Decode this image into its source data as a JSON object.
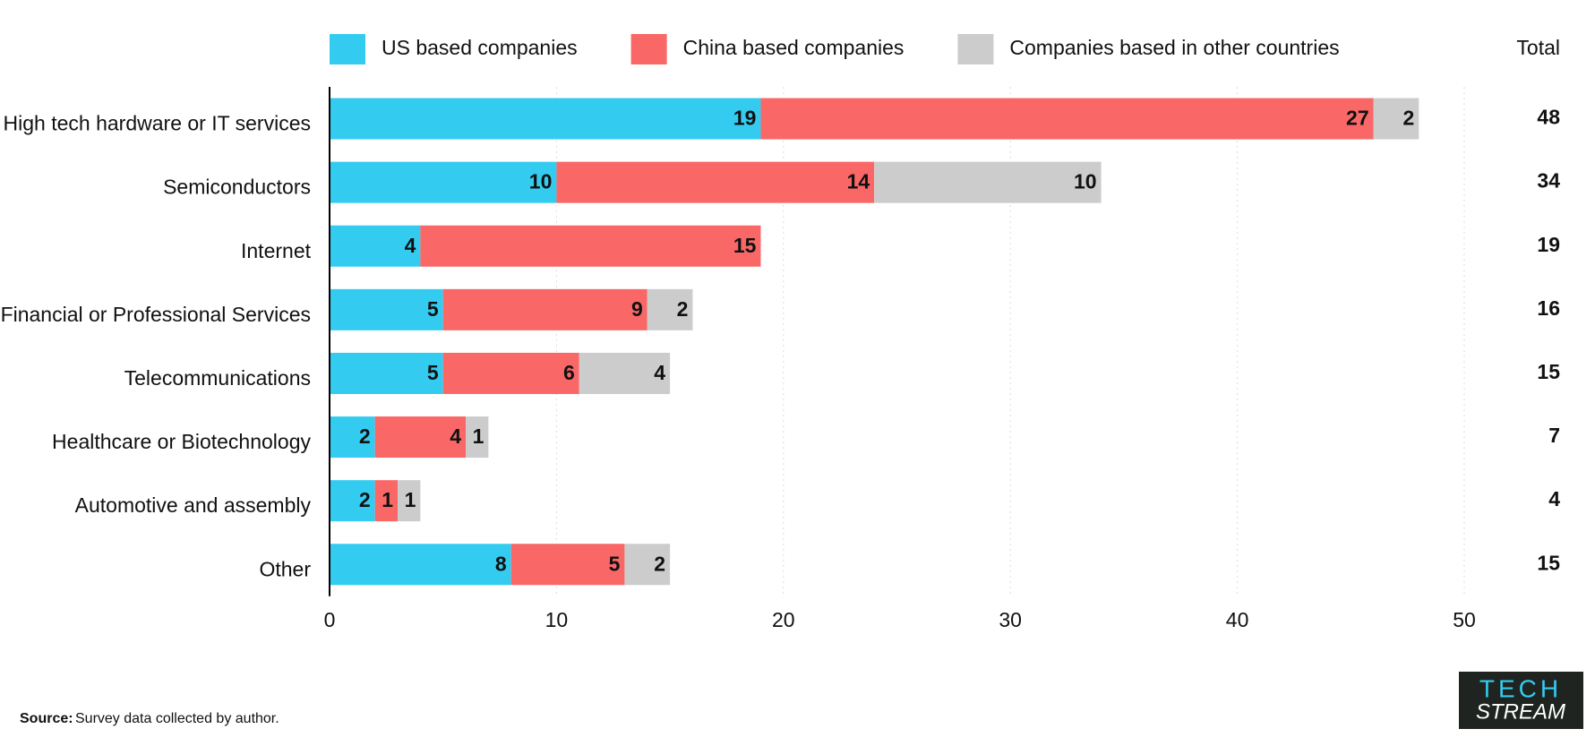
{
  "chart_data": {
    "type": "stacked-barh",
    "categories": [
      "High tech hardware or IT services",
      "Semiconductors",
      "Internet",
      "Financial or Professional Services",
      "Telecommunications",
      "Healthcare or Biotechnology",
      "Automotive and assembly",
      "Other"
    ],
    "series": [
      {
        "name": "US based companies",
        "color": "#33ccf0",
        "values": [
          19,
          10,
          4,
          5,
          5,
          2,
          2,
          8
        ]
      },
      {
        "name": "China based companies",
        "color": "#f96767",
        "values": [
          27,
          14,
          15,
          9,
          6,
          4,
          1,
          5
        ]
      },
      {
        "name": "Companies based in other countries",
        "color": "#cccccc",
        "values": [
          2,
          10,
          0,
          2,
          4,
          1,
          1,
          2
        ]
      }
    ],
    "totals_label": "Total",
    "totals": [
      48,
      34,
      19,
      16,
      15,
      7,
      4,
      15
    ],
    "xlim": [
      0,
      50
    ],
    "xticks": [
      0,
      10,
      20,
      30,
      40,
      50
    ],
    "grid": true
  },
  "footer": {
    "source_label": "Source:",
    "source": "Survey data collected by author."
  },
  "logo": {
    "line1": "TECH",
    "line2": "STREAM"
  }
}
